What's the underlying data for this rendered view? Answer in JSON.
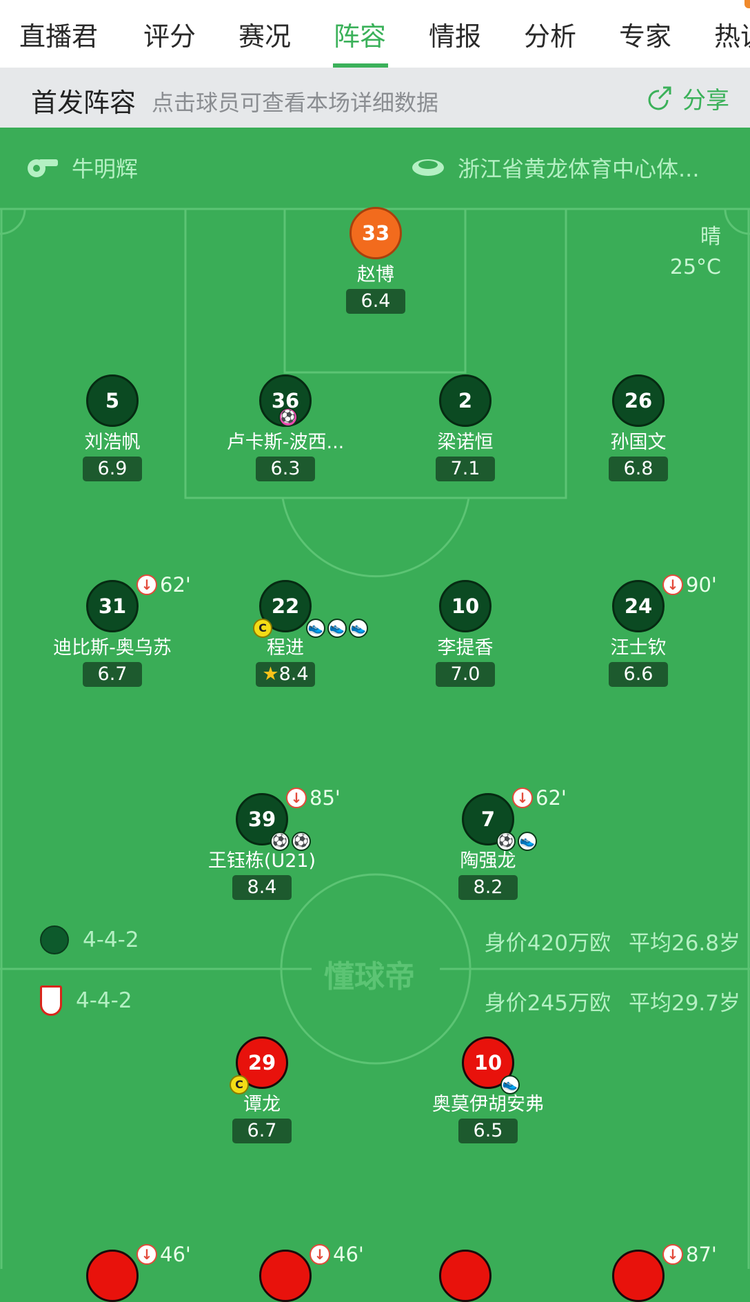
{
  "tabs": [
    "直播君",
    "评分",
    "赛况",
    "阵容",
    "情报",
    "分析",
    "专家",
    "热议"
  ],
  "active_tab": "阵容",
  "section": {
    "title": "首发阵容",
    "hint": "点击球员可查看本场详细数据",
    "share": "分享"
  },
  "referee": "牛明辉",
  "venue": "浙江省黄龙体育中心体...",
  "weather": {
    "condition": "晴",
    "temp": "25°C"
  },
  "watermark": "懂球帝",
  "colors": {
    "field": "#3aad57",
    "accent": "#3bb15a",
    "home": "#0b4a22",
    "away": "#e8120c",
    "gk": "#f26b1d"
  },
  "home": {
    "formation": "4-4-2",
    "value": "身价420万欧",
    "avg_age": "平均26.8岁",
    "players": [
      {
        "number": "33",
        "name": "赵博",
        "rating": "6.4"
      },
      {
        "number": "5",
        "name": "刘浩帆",
        "rating": "6.9"
      },
      {
        "number": "36",
        "name": "卢卡斯-波西...",
        "rating": "6.3",
        "events": [
          "own-goal-icon"
        ]
      },
      {
        "number": "2",
        "name": "梁诺恒",
        "rating": "7.1"
      },
      {
        "number": "26",
        "name": "孙国文",
        "rating": "6.8"
      },
      {
        "number": "31",
        "name": "迪比斯-奥乌苏",
        "rating": "6.7",
        "sub_out": "62'"
      },
      {
        "number": "22",
        "name": "程进",
        "rating": "8.4",
        "captain": "C",
        "events": [
          "assist-icon",
          "assist-icon",
          "assist-icon"
        ],
        "mvp": "star-icon"
      },
      {
        "number": "10",
        "name": "李提香",
        "rating": "7.0"
      },
      {
        "number": "24",
        "name": "汪士钦",
        "rating": "6.6",
        "sub_out": "90'"
      },
      {
        "number": "39",
        "name": "王钰栋(U21)",
        "rating": "8.4",
        "sub_out": "85'",
        "events": [
          "goal-icon",
          "goal-icon"
        ]
      },
      {
        "number": "7",
        "name": "陶强龙",
        "rating": "8.2",
        "sub_out": "62'",
        "events": [
          "goal-icon",
          "assist-icon"
        ]
      }
    ]
  },
  "away": {
    "formation": "4-4-2",
    "value": "身价245万欧",
    "avg_age": "平均29.7岁",
    "players": [
      {
        "number": "29",
        "name": "谭龙",
        "rating": "6.7",
        "captain": "C"
      },
      {
        "number": "10",
        "name": "奥莫伊胡安弗",
        "rating": "6.5",
        "events": [
          "assist-icon"
        ]
      },
      {
        "sub_out": "46'"
      },
      {
        "sub_out": "46'"
      },
      {},
      {
        "sub_out": "87'"
      }
    ]
  }
}
